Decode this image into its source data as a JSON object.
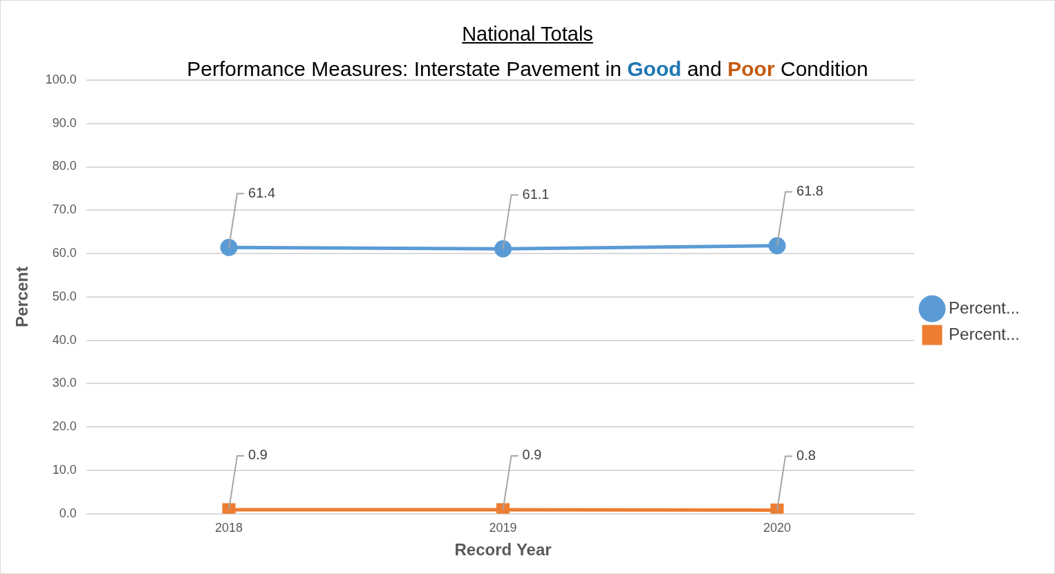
{
  "chart_data": {
    "type": "line",
    "title": "National Totals",
    "subtitle": [
      {
        "text": "Performance Measures: Interstate Pavement in "
      },
      {
        "text": "Good",
        "color": "#1F77B4"
      },
      {
        "text": " and "
      },
      {
        "text": "Poor",
        "color": "#C55A11"
      },
      {
        "text": " Condition"
      }
    ],
    "x_label": "Record Year",
    "y_label": "Percent",
    "categories": [
      "2018",
      "2019",
      "2020"
    ],
    "series": [
      {
        "name": "Percent...",
        "color": "#5B9BD5",
        "marker": "circle",
        "values": [
          61.4,
          61.1,
          61.8
        ]
      },
      {
        "name": "Percent...",
        "color": "#ED7D31",
        "marker": "square",
        "values": [
          0.9,
          0.9,
          0.8
        ]
      }
    ],
    "ylim": [
      0,
      100
    ],
    "yticks": [
      {
        "value": 0,
        "label": "0.0"
      },
      {
        "value": 10,
        "label": "10.0"
      },
      {
        "value": 20,
        "label": "20.0"
      },
      {
        "value": 30,
        "label": "30.0"
      },
      {
        "value": 40,
        "label": "40.0"
      },
      {
        "value": 50,
        "label": "50.0"
      },
      {
        "value": 60,
        "label": "60.0"
      },
      {
        "value": 70,
        "label": "70.0"
      },
      {
        "value": 80,
        "label": "80.0"
      },
      {
        "value": 90,
        "label": "90.0"
      },
      {
        "value": 100,
        "label": "100.0"
      }
    ],
    "grid": true,
    "legend": "right",
    "data_labels": true
  }
}
